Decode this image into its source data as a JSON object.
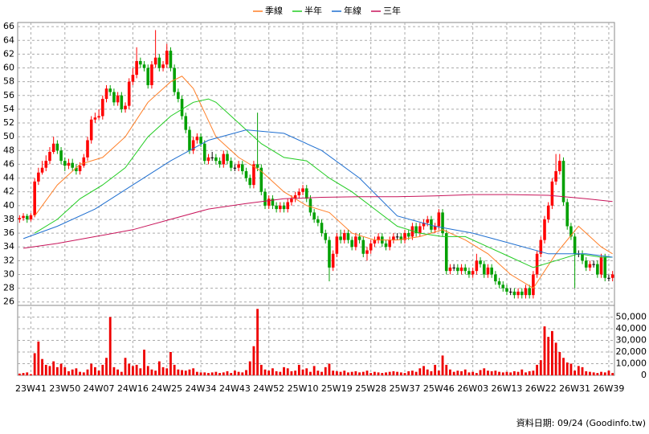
{
  "chart_data": {
    "type": "candlestick",
    "categories": [
      null,
      null,
      null,
      "23W41",
      null,
      null,
      null,
      null,
      null,
      null,
      null,
      null,
      "23W50",
      null,
      null,
      null,
      null,
      null,
      null,
      null,
      null,
      "24W07",
      null,
      null,
      null,
      null,
      null,
      null,
      null,
      null,
      "24W16",
      null,
      null,
      null,
      null,
      null,
      null,
      null,
      null,
      "24W25",
      null,
      null,
      null,
      null,
      null,
      null,
      null,
      null,
      "24W34",
      null,
      null,
      null,
      null,
      null,
      null,
      null,
      null,
      "24W43",
      null,
      null,
      null,
      null,
      null,
      null,
      null,
      null,
      "24W52",
      null,
      null,
      null,
      null,
      null,
      null,
      null,
      null,
      "25W10",
      null,
      null,
      null,
      null,
      null,
      null,
      null,
      null,
      "25W19",
      null,
      null,
      null,
      null,
      null,
      null,
      null,
      null,
      "25W28",
      null,
      null,
      null,
      null,
      null,
      null,
      null,
      null,
      "25W37",
      null,
      null,
      null,
      null,
      null,
      null,
      null,
      null,
      "25W46",
      null,
      null,
      null,
      null,
      null,
      null,
      null,
      null,
      "26W03",
      null,
      null,
      null,
      null,
      null,
      null,
      null,
      null,
      "26W13",
      null,
      null,
      null,
      null,
      null,
      null,
      null,
      null,
      "26W22",
      null,
      null,
      null,
      null,
      null,
      null,
      null,
      null,
      "26W31",
      null,
      null,
      null,
      null,
      null,
      null,
      null,
      null,
      "26W39",
      null
    ],
    "open": [
      38.0,
      38.2,
      38.5,
      38.0,
      38.6,
      43.5,
      44.8,
      45.5,
      46.5,
      47.8,
      49.0,
      48.0,
      46.5,
      45.8,
      46.2,
      45.5,
      45.0,
      45.8,
      47.0,
      49.5,
      52.5,
      52.8,
      53.0,
      55.5,
      57.0,
      56.5,
      55.0,
      56.0,
      54.0,
      54.5,
      58.0,
      59.0,
      61.0,
      60.5,
      60.0,
      57.5,
      60.5,
      61.5,
      60.0,
      60.5,
      62.5,
      60.0,
      56.5,
      55.5,
      53.0,
      51.0,
      48.0,
      49.5,
      50.0,
      49.0,
      46.5,
      47.0,
      47.0,
      46.5,
      46.0,
      47.5,
      46.5,
      45.5,
      45.5,
      46.0,
      45.0,
      44.0,
      43.0,
      46.0,
      45.5,
      42.0,
      40.0,
      41.0,
      40.0,
      39.5,
      40.0,
      39.5,
      40.5,
      41.0,
      41.5,
      42.0,
      42.5,
      41.0,
      39.0,
      38.0,
      37.5,
      36.0,
      35.0,
      31.0,
      33.0,
      35.5,
      35.0,
      36.0,
      35.0,
      34.0,
      35.5,
      35.0,
      33.0,
      33.5,
      34.5,
      35.0,
      35.5,
      34.5,
      34.0,
      35.0,
      35.5,
      35.5,
      35.0,
      36.0,
      35.5,
      37.0,
      36.0,
      37.0,
      37.5,
      38.0,
      36.5,
      37.0,
      39.0,
      36.0,
      30.5,
      31.0,
      31.0,
      30.5,
      31.0,
      30.5,
      30.0,
      30.5,
      32.0,
      31.5,
      30.0,
      31.0,
      30.0,
      29.0,
      28.5,
      28.0,
      27.5,
      27.5,
      27.0,
      27.5,
      27.0,
      28.0,
      27.0,
      30.0,
      33.0,
      35.0,
      38.0,
      40.0,
      43.5,
      45.0,
      46.5,
      40.5,
      37.0,
      35.5,
      33.0,
      33.0,
      32.0,
      31.0,
      31.5,
      31.5,
      30.0,
      32.5,
      29.5,
      29.5
    ],
    "high": [
      38.6,
      38.9,
      38.8,
      38.9,
      44.0,
      45.5,
      46.5,
      47.3,
      48.5,
      50.0,
      49.5,
      48.5,
      47.0,
      46.8,
      46.8,
      46.0,
      46.3,
      47.5,
      50.0,
      53.0,
      53.5,
      54.0,
      56.0,
      57.5,
      57.5,
      57.0,
      56.5,
      56.5,
      55.0,
      58.5,
      60.0,
      63.0,
      61.5,
      61.0,
      60.5,
      61.0,
      65.5,
      62.0,
      61.0,
      63.5,
      63.0,
      60.5,
      57.0,
      56.0,
      53.5,
      51.5,
      50.0,
      50.5,
      50.5,
      49.5,
      47.5,
      47.8,
      47.5,
      47.0,
      48.0,
      48.0,
      47.0,
      46.0,
      46.5,
      46.5,
      45.5,
      44.5,
      46.5,
      53.5,
      46.0,
      42.5,
      41.5,
      41.5,
      40.5,
      40.5,
      40.5,
      41.0,
      41.5,
      42.0,
      42.5,
      43.0,
      43.0,
      41.5,
      39.5,
      38.5,
      38.0,
      36.5,
      35.5,
      33.5,
      36.0,
      36.5,
      36.5,
      36.5,
      35.5,
      36.0,
      36.0,
      35.5,
      34.0,
      35.0,
      35.5,
      36.0,
      36.0,
      35.0,
      35.5,
      36.0,
      36.0,
      36.0,
      36.5,
      36.5,
      37.5,
      37.5,
      37.5,
      38.0,
      38.5,
      38.5,
      37.5,
      39.5,
      39.5,
      36.5,
      31.5,
      31.5,
      31.5,
      31.5,
      31.5,
      31.0,
      31.0,
      33.0,
      32.5,
      32.0,
      31.5,
      31.5,
      30.5,
      29.5,
      29.0,
      28.5,
      28.0,
      28.0,
      28.0,
      28.0,
      28.5,
      28.5,
      30.5,
      33.5,
      35.5,
      38.5,
      40.5,
      44.0,
      47.5,
      47.5,
      47.0,
      41.0,
      37.5,
      36.0,
      33.5,
      33.5,
      32.5,
      32.0,
      32.0,
      32.0,
      33.0,
      33.0,
      30.0,
      30.5
    ],
    "low": [
      37.5,
      37.8,
      37.5,
      37.7,
      38.3,
      43.0,
      44.5,
      45.0,
      46.0,
      47.5,
      47.5,
      46.0,
      45.0,
      45.3,
      45.0,
      44.5,
      44.5,
      45.5,
      46.5,
      49.0,
      52.0,
      52.5,
      52.5,
      55.0,
      56.0,
      54.5,
      54.5,
      53.5,
      53.5,
      54.0,
      57.5,
      58.5,
      60.0,
      59.5,
      57.0,
      57.0,
      60.0,
      59.5,
      59.5,
      60.0,
      59.5,
      56.0,
      55.0,
      52.5,
      50.5,
      47.5,
      47.5,
      49.0,
      48.5,
      46.0,
      46.0,
      46.5,
      46.0,
      45.5,
      45.5,
      46.0,
      45.0,
      45.0,
      45.0,
      44.5,
      43.5,
      42.5,
      42.5,
      45.0,
      41.5,
      39.5,
      39.5,
      39.5,
      39.0,
      39.0,
      39.0,
      39.0,
      40.0,
      40.5,
      41.0,
      41.5,
      40.5,
      38.5,
      37.5,
      37.0,
      35.5,
      34.5,
      29.0,
      30.5,
      32.5,
      34.5,
      34.5,
      34.5,
      33.5,
      33.5,
      34.5,
      32.5,
      32.0,
      33.0,
      34.0,
      34.5,
      34.0,
      33.5,
      33.5,
      34.5,
      35.0,
      34.5,
      34.5,
      35.0,
      35.0,
      35.5,
      35.5,
      36.5,
      37.0,
      36.0,
      36.0,
      36.5,
      35.5,
      30.0,
      30.0,
      30.5,
      30.0,
      30.0,
      30.0,
      29.5,
      29.5,
      30.0,
      31.0,
      29.5,
      29.5,
      29.5,
      28.5,
      28.0,
      27.5,
      27.0,
      27.0,
      26.5,
      26.5,
      26.5,
      26.5,
      26.5,
      26.5,
      29.5,
      32.5,
      34.5,
      37.5,
      39.5,
      43.0,
      44.5,
      40.0,
      36.5,
      35.0,
      28.0,
      32.5,
      31.5,
      30.5,
      30.5,
      31.0,
      29.5,
      29.5,
      29.0,
      29.0,
      29.0
    ],
    "close": [
      38.2,
      38.5,
      38.0,
      38.6,
      43.5,
      44.8,
      45.5,
      46.5,
      47.8,
      49.0,
      48.0,
      46.5,
      45.8,
      46.2,
      45.5,
      45.0,
      45.8,
      47.0,
      49.5,
      52.5,
      52.8,
      53.0,
      55.5,
      57.0,
      56.5,
      55.0,
      56.0,
      54.0,
      54.5,
      58.0,
      59.0,
      61.0,
      60.5,
      60.0,
      57.5,
      60.5,
      61.5,
      60.0,
      60.5,
      62.5,
      60.0,
      56.5,
      55.5,
      53.0,
      51.0,
      48.0,
      49.5,
      50.0,
      49.0,
      46.5,
      47.0,
      47.0,
      46.5,
      46.0,
      47.5,
      46.5,
      45.5,
      45.5,
      46.0,
      45.0,
      44.0,
      43.0,
      46.0,
      45.5,
      42.0,
      40.0,
      41.0,
      40.0,
      39.5,
      40.0,
      39.5,
      40.5,
      41.0,
      41.5,
      42.0,
      42.5,
      41.0,
      39.0,
      38.0,
      37.5,
      36.0,
      35.0,
      31.0,
      33.0,
      35.5,
      35.0,
      36.0,
      35.0,
      34.0,
      35.5,
      35.0,
      33.0,
      33.5,
      34.5,
      35.0,
      35.5,
      34.5,
      34.0,
      35.0,
      35.5,
      35.5,
      35.0,
      36.0,
      35.5,
      37.0,
      36.0,
      37.0,
      37.5,
      38.0,
      36.5,
      37.0,
      39.0,
      36.0,
      30.5,
      31.0,
      31.0,
      30.5,
      31.0,
      30.5,
      30.0,
      30.5,
      32.0,
      31.5,
      30.0,
      31.0,
      30.0,
      29.0,
      28.5,
      28.0,
      27.5,
      27.5,
      27.0,
      27.5,
      27.0,
      28.0,
      27.0,
      30.0,
      33.0,
      35.0,
      38.0,
      40.0,
      43.5,
      45.0,
      46.5,
      40.5,
      37.0,
      35.5,
      33.0,
      33.0,
      32.0,
      31.0,
      31.5,
      31.5,
      30.0,
      32.5,
      29.5,
      29.5,
      30.0
    ],
    "up_color": "#ff0000",
    "down_color": "#00a000",
    "ylim": [
      25.5,
      66.6
    ],
    "yticks": [
      26,
      28,
      30,
      32,
      34,
      36,
      38,
      40,
      42,
      44,
      46,
      48,
      50,
      52,
      54,
      56,
      58,
      60,
      62,
      64,
      66
    ],
    "grid": true,
    "series": [
      {
        "name": "季線",
        "color": "#ff7f27",
        "x": [
          4,
          10,
          16,
          22,
          28,
          34,
          40,
          43,
          46,
          52,
          58,
          64,
          70,
          76,
          82,
          88,
          94,
          100,
          106,
          112,
          118,
          124,
          130,
          136,
          142,
          148,
          154,
          157
        ],
        "values": [
          38.5,
          43,
          46,
          47,
          50,
          55,
          58,
          58.8,
          57,
          50,
          47,
          45,
          42,
          40,
          39,
          36,
          35,
          35,
          35.5,
          36.5,
          35,
          33,
          30,
          28,
          33,
          37,
          34,
          33
        ]
      },
      {
        "name": "半年",
        "color": "#22cc22",
        "x": [
          4,
          10,
          16,
          22,
          28,
          34,
          40,
          46,
          50,
          52,
          58,
          64,
          70,
          76,
          82,
          88,
          94,
          100,
          106,
          112,
          118,
          124,
          130,
          136,
          142,
          148,
          154,
          157
        ],
        "values": [
          36,
          38,
          41,
          43,
          45.5,
          50,
          53,
          55,
          55.5,
          55,
          52,
          49,
          47,
          46.5,
          44,
          42,
          39.5,
          37,
          36,
          35.5,
          35.5,
          34,
          32.5,
          31,
          32,
          33,
          32.5,
          32.5
        ]
      },
      {
        "name": "年線",
        "color": "#1f6fd0",
        "x": [
          1,
          10,
          20,
          30,
          40,
          50,
          60,
          70,
          80,
          90,
          100,
          110,
          120,
          130,
          140,
          150,
          157
        ],
        "values": [
          35.2,
          37,
          39.5,
          43,
          46.5,
          49.5,
          51,
          50.5,
          48,
          44,
          38.5,
          37,
          36,
          34.5,
          33,
          33,
          32.5
        ]
      },
      {
        "name": "三年",
        "color": "#c8145a",
        "x": [
          1,
          10,
          20,
          30,
          40,
          50,
          60,
          70,
          80,
          90,
          100,
          110,
          120,
          130,
          140,
          150,
          157
        ],
        "values": [
          33.8,
          34.5,
          35.5,
          36.5,
          38,
          39.5,
          40.3,
          41,
          41.2,
          41.3,
          41.3,
          41.4,
          41.6,
          41.6,
          41.5,
          41,
          40.6
        ]
      }
    ],
    "volume": {
      "color": "#ee0000",
      "values": [
        1500,
        2000,
        2500,
        1000,
        19000,
        29000,
        14000,
        9000,
        8000,
        12000,
        7000,
        10000,
        7000,
        3500,
        5000,
        6000,
        3000,
        2500,
        5000,
        10000,
        7000,
        4000,
        9000,
        15000,
        50000,
        7000,
        5000,
        3000,
        15000,
        10000,
        8000,
        9000,
        6000,
        22000,
        8000,
        5000,
        4000,
        12000,
        7000,
        6000,
        20000,
        9000,
        5000,
        4500,
        4000,
        5000,
        6000,
        3000,
        2500,
        2500,
        2000,
        2500,
        3000,
        2000,
        2500,
        3500,
        2000,
        4000,
        3000,
        2500,
        4500,
        12000,
        25000,
        57000,
        9000,
        5000,
        4000,
        6000,
        3500,
        3000,
        7000,
        6000,
        3500,
        4000,
        9000,
        5000,
        6000,
        3000,
        8000,
        4000,
        3000,
        7000,
        10000,
        4000,
        3500,
        3000,
        4000,
        2500,
        3000,
        3500,
        2500,
        3000,
        4000,
        2000,
        3000,
        2500,
        2000,
        2500,
        3000,
        3500,
        3000,
        2500,
        2000,
        3500,
        4000,
        3000,
        6000,
        8000,
        5000,
        3500,
        9000,
        4000,
        17000,
        9000,
        5000,
        3000,
        4000,
        3500,
        5000,
        2500,
        3000,
        2000,
        4500,
        6000,
        4000,
        3500,
        4000,
        3000,
        2500,
        3000,
        2500,
        3500,
        3000,
        5000,
        2500,
        3500,
        4000,
        9000,
        13000,
        42000,
        33000,
        38000,
        28000,
        20000,
        15000,
        11000,
        10000,
        4000,
        8000,
        7000,
        3500,
        3000,
        2500,
        2000,
        3000,
        2500,
        4000,
        2000
      ],
      "ylim": [
        0,
        60000
      ],
      "yticks": [
        0,
        {
          "value": 10000,
          "label": "10,000"
        },
        {
          "value": 20000,
          "label": "20,000"
        },
        {
          "value": 30000,
          "label": "30,000"
        },
        {
          "value": 40000,
          "label": "40,000"
        },
        {
          "value": 50000,
          "label": "50,000"
        }
      ]
    },
    "source": "資料日期: 09/24  (Goodinfo.tw)"
  }
}
